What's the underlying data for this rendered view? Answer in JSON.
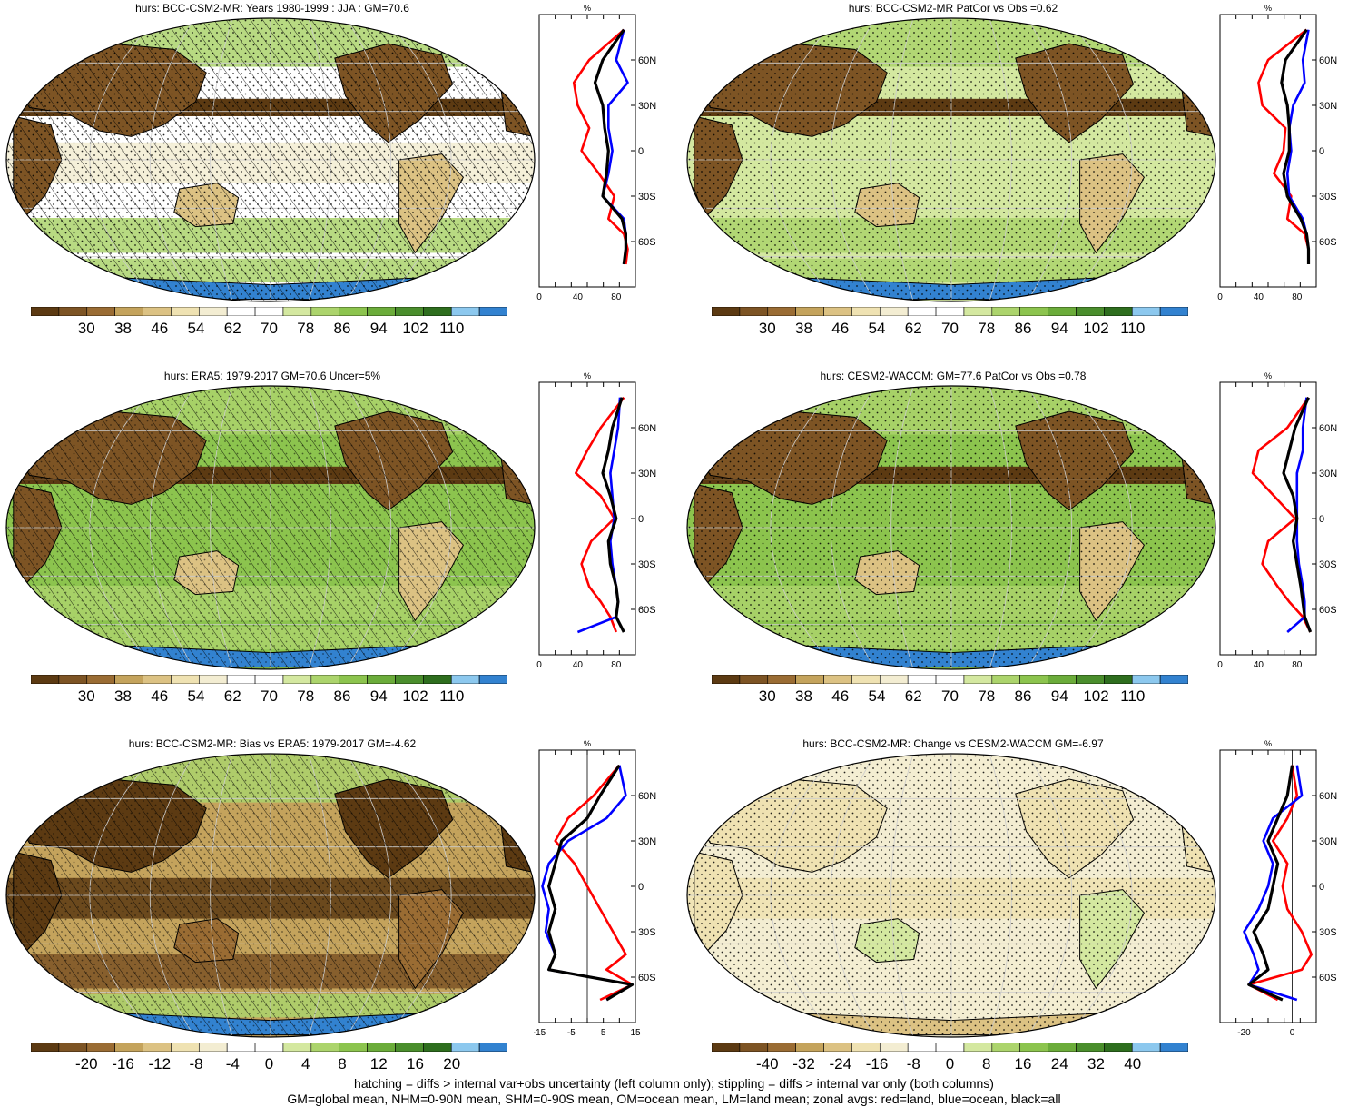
{
  "panels": [
    {
      "id": "p1",
      "title": "hurs: BCC-CSM2-MR: Years 1980-1999 : JJA : GM=70.6",
      "kind": "abs",
      "hatch": true,
      "stipple": "land"
    },
    {
      "id": "p2",
      "title": "hurs: BCC-CSM2-MR PatCor vs Obs =0.62",
      "kind": "abs",
      "hatch": false,
      "stipple": "ocean"
    },
    {
      "id": "p3",
      "title": "hurs: ERA5: 1979-2017 GM=70.6 Uncer=5%",
      "kind": "abs",
      "hatch": true,
      "stipple": "sparse"
    },
    {
      "id": "p4",
      "title": "hurs: CESM2-WACCM: GM=77.6 PatCor vs Obs =0.78",
      "kind": "abs",
      "hatch": false,
      "stipple": "ocean"
    },
    {
      "id": "p5",
      "title": "hurs: BCC-CSM2-MR: Bias vs ERA5: 1979-2017 GM=-4.62",
      "kind": "bias",
      "hatch": true,
      "stipple": "sparse"
    },
    {
      "id": "p6",
      "title": "hurs: BCC-CSM2-MR: Change vs CESM2-WACCM GM=-6.97",
      "kind": "change",
      "hatch": false,
      "stipple": "all"
    }
  ],
  "colorbars": {
    "abs": {
      "labels": [
        "30",
        "38",
        "46",
        "54",
        "62",
        "70",
        "78",
        "86",
        "94",
        "102",
        "110"
      ]
    },
    "bias": {
      "labels": [
        "-20",
        "-16",
        "-12",
        "-8",
        "-4",
        "0",
        "4",
        "8",
        "12",
        "16",
        "20"
      ]
    },
    "change": {
      "labels": [
        "-40",
        "-32",
        "-24",
        "-16",
        "-8",
        "0",
        "8",
        "16",
        "24",
        "32",
        "40"
      ]
    }
  },
  "colors": {
    "palette": [
      "#5c3a12",
      "#7d5424",
      "#9a6c33",
      "#c4a35c",
      "#dcc283",
      "#efe2b2",
      "#f3edd2",
      "#ffffff",
      "#ffffff",
      "#d4e8a0",
      "#acd46c",
      "#8cc44e",
      "#6bac3a",
      "#4a8e2c",
      "#2e6e1e",
      "#8cc8ee",
      "#3282d0"
    ],
    "land": "#ff0000",
    "ocean": "#0000ff",
    "all": "#000000"
  },
  "chart_data": [
    {
      "type": "line",
      "panel": "hurs: BCC-CSM2-MR: Years 1980-1999 : JJA : GM=70.6",
      "title_unit": "%",
      "xlim": [
        0,
        100
      ],
      "xticks": [
        "0",
        "40",
        "80"
      ],
      "ylim": [
        -90,
        90
      ],
      "yticks": [
        "60N",
        "30N",
        "0",
        "30S",
        "60S"
      ],
      "lat": [
        80,
        60,
        45,
        30,
        15,
        0,
        -15,
        -30,
        -45,
        -55,
        -65,
        -75
      ],
      "series": [
        {
          "name": "red=land",
          "values": [
            88,
            52,
            36,
            40,
            52,
            44,
            62,
            78,
            72,
            88,
            92,
            90
          ]
        },
        {
          "name": "blue=ocean",
          "values": [
            88,
            80,
            92,
            72,
            72,
            76,
            72,
            66,
            88,
            90,
            90,
            88
          ]
        },
        {
          "name": "black=all",
          "values": [
            88,
            66,
            58,
            66,
            68,
            72,
            70,
            66,
            86,
            90,
            90,
            88
          ]
        }
      ]
    },
    {
      "type": "line",
      "panel": "hurs: BCC-CSM2-MR PatCor vs Obs =0.62",
      "title_unit": "%",
      "xlim": [
        0,
        100
      ],
      "xticks": [
        "0",
        "40",
        "80"
      ],
      "ylim": [
        -90,
        90
      ],
      "yticks": [
        "60N",
        "30N",
        "0",
        "30S",
        "60S"
      ],
      "lat": [
        80,
        60,
        45,
        30,
        15,
        0,
        -15,
        -30,
        -45,
        -55,
        -65,
        -75
      ],
      "series": [
        {
          "name": "red=land",
          "values": [
            90,
            50,
            40,
            44,
            68,
            66,
            56,
            74,
            70,
            88,
            92,
            92
          ]
        },
        {
          "name": "blue=ocean",
          "values": [
            92,
            86,
            88,
            76,
            72,
            74,
            70,
            72,
            86,
            90,
            92,
            92
          ]
        },
        {
          "name": "black=all",
          "values": [
            90,
            68,
            64,
            70,
            72,
            72,
            66,
            70,
            84,
            90,
            92,
            92
          ]
        }
      ]
    },
    {
      "type": "line",
      "panel": "hurs: ERA5: 1979-2017 GM=70.6 Uncer=5%",
      "title_unit": "%",
      "xlim": [
        0,
        100
      ],
      "xticks": [
        "0",
        "40",
        "80"
      ],
      "ylim": [
        -90,
        90
      ],
      "yticks": [
        "60N",
        "30N",
        "0",
        "30S",
        "60S"
      ],
      "lat": [
        80,
        60,
        45,
        30,
        15,
        0,
        -15,
        -30,
        -45,
        -55,
        -65,
        -75
      ],
      "series": [
        {
          "name": "red=land",
          "values": [
            88,
            64,
            50,
            38,
            64,
            78,
            54,
            44,
            52,
            64,
            74,
            80
          ]
        },
        {
          "name": "blue=ocean",
          "values": [
            84,
            82,
            78,
            74,
            76,
            78,
            74,
            76,
            80,
            82,
            80,
            40
          ]
        },
        {
          "name": "black=all",
          "values": [
            86,
            76,
            72,
            66,
            74,
            80,
            72,
            74,
            80,
            82,
            80,
            88
          ]
        }
      ]
    },
    {
      "type": "line",
      "panel": "hurs: CESM2-WACCM: GM=77.6 PatCor vs Obs =0.78",
      "title_unit": "%",
      "xlim": [
        0,
        100
      ],
      "xticks": [
        "0",
        "40",
        "80"
      ],
      "ylim": [
        -90,
        90
      ],
      "yticks": [
        "60N",
        "30N",
        "0",
        "30S",
        "60S"
      ],
      "lat": [
        80,
        60,
        45,
        30,
        15,
        0,
        -15,
        -30,
        -45,
        -55,
        -65,
        -75
      ],
      "series": [
        {
          "name": "red=land",
          "values": [
            92,
            70,
            40,
            34,
            56,
            78,
            50,
            44,
            60,
            72,
            86,
            94
          ]
        },
        {
          "name": "blue=ocean",
          "values": [
            90,
            86,
            86,
            80,
            80,
            80,
            80,
            82,
            86,
            88,
            88,
            70
          ]
        },
        {
          "name": "black=all",
          "values": [
            92,
            78,
            72,
            66,
            76,
            80,
            76,
            80,
            84,
            86,
            88,
            94
          ]
        }
      ]
    },
    {
      "type": "line",
      "panel": "hurs: BCC-CSM2-MR: Bias vs ERA5: 1979-2017 GM=-4.62",
      "title_unit": "%",
      "xlim": [
        -15,
        15
      ],
      "xticks": [
        "-15",
        "-5",
        "5",
        "15"
      ],
      "ylim": [
        -90,
        90
      ],
      "yticks": [
        "60N",
        "30N",
        "0",
        "30S",
        "60S"
      ],
      "lat": [
        80,
        60,
        45,
        30,
        15,
        0,
        -15,
        -30,
        -45,
        -55,
        -65,
        -75
      ],
      "series": [
        {
          "name": "red=land",
          "values": [
            10,
            2,
            -6,
            -10,
            -4,
            0,
            4,
            8,
            12,
            6,
            14,
            4
          ]
        },
        {
          "name": "blue=ocean",
          "values": [
            10,
            12,
            6,
            -6,
            -12,
            -14,
            -12,
            -13,
            -10,
            -12,
            14,
            6
          ]
        },
        {
          "name": "black=all",
          "values": [
            10,
            4,
            0,
            -8,
            -10,
            -12,
            -10,
            -12,
            -10,
            -12,
            14,
            6
          ]
        }
      ]
    },
    {
      "type": "line",
      "panel": "hurs: BCC-CSM2-MR: Change vs CESM2-WACCM GM=-6.97",
      "title_unit": "%",
      "xlim": [
        -30,
        10
      ],
      "xticks": [
        "-20",
        "0"
      ],
      "ylim": [
        -90,
        90
      ],
      "yticks": [
        "60N",
        "30N",
        "0",
        "30S",
        "60S"
      ],
      "lat": [
        80,
        60,
        45,
        30,
        15,
        0,
        -15,
        -30,
        -45,
        -55,
        -65,
        -75
      ],
      "series": [
        {
          "name": "red=land",
          "values": [
            0,
            2,
            -2,
            -8,
            -2,
            -4,
            -2,
            4,
            8,
            4,
            -18,
            -6
          ]
        },
        {
          "name": "blue=ocean",
          "values": [
            2,
            4,
            -8,
            -12,
            -8,
            -10,
            -14,
            -20,
            -16,
            -14,
            -18,
            2
          ]
        },
        {
          "name": "black=all",
          "values": [
            0,
            -2,
            -6,
            -10,
            -6,
            -8,
            -10,
            -16,
            -12,
            -10,
            -18,
            -4
          ]
        }
      ]
    }
  ],
  "footer": {
    "line1": "hatching = diffs > internal var+obs uncertainty (left column only); stippling = diffs > internal var only (both columns)",
    "line2": "GM=global mean, NHM=0-90N mean, SHM=0-90S mean, OM=ocean mean, LM=land mean; zonal avgs: red=land, blue=ocean, black=all"
  }
}
